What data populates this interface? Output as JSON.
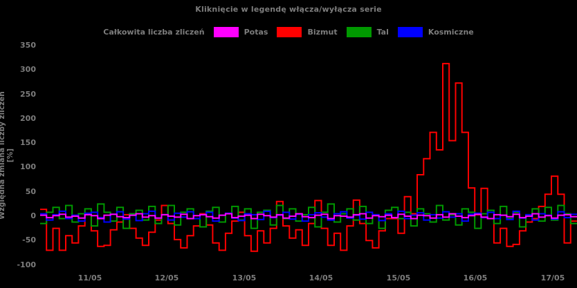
{
  "chart_data": {
    "type": "line",
    "style": "steps",
    "title": "Kliknięcie w legendę włącza/wyłącza serie",
    "ylabel": "Względna zmiana liczby zliczeń [%]",
    "xlabel": "",
    "ylim": [
      -100,
      350
    ],
    "grid": false,
    "background_color": "#000000",
    "text_color": "#7d7d7d",
    "legend_position": "top-center",
    "ytick_labels": [
      "350",
      "300",
      "250",
      "200",
      "150",
      "100",
      "50",
      "0",
      "-50",
      "-100"
    ],
    "yticks": [
      350,
      300,
      250,
      200,
      150,
      100,
      50,
      0,
      -50,
      -100
    ],
    "xtick_labels": [
      "11/05",
      "12/05",
      "13/05",
      "14/05",
      "15/05",
      "16/05",
      "17/05"
    ],
    "legend": [
      {
        "label": "Całkowita liczba zliczeń",
        "color": null,
        "visible": false
      },
      {
        "label": "Potas",
        "color": "#ff00ff",
        "visible": true
      },
      {
        "label": "Bizmut",
        "color": "#ff0000",
        "visible": true
      },
      {
        "label": "Tal",
        "color": "#009900",
        "visible": true
      },
      {
        "label": "Kosmiczne",
        "color": "#0000ff",
        "visible": true
      }
    ],
    "x_axis_note": "time bins of ~2h from 10/05 ~09:00 to 17/05 ~08:00",
    "series": [
      {
        "name": "Bizmut",
        "color": "#ff0000",
        "values": [
          14,
          -70,
          -25,
          -70,
          -40,
          -55,
          -20,
          5,
          -30,
          -62,
          -60,
          -28,
          -12,
          3,
          -25,
          -45,
          -60,
          -33,
          -8,
          22,
          -15,
          -48,
          -65,
          -40,
          -20,
          5,
          -18,
          -55,
          -70,
          -35,
          -10,
          8,
          -40,
          -72,
          -30,
          -55,
          -25,
          30,
          -20,
          -45,
          -28,
          -60,
          -15,
          32,
          -25,
          -60,
          -35,
          -70,
          -20,
          33,
          -15,
          -50,
          -65,
          -30,
          -5,
          -5,
          -35,
          40,
          5,
          85,
          118,
          172,
          136,
          313,
          155,
          273,
          172,
          58,
          3,
          57,
          -5,
          -55,
          -25,
          -62,
          -58,
          -30,
          -12,
          -5,
          20,
          45,
          82,
          45,
          -55,
          -10
        ]
      },
      {
        "name": "Tal",
        "color": "#009900",
        "values": [
          -15,
          8,
          18,
          -5,
          22,
          -12,
          5,
          15,
          -20,
          25,
          8,
          -10,
          18,
          -25,
          5,
          12,
          -8,
          20,
          -15,
          3,
          22,
          -18,
          8,
          15,
          -5,
          -22,
          10,
          18,
          -12,
          5,
          20,
          -8,
          15,
          -25,
          8,
          12,
          -18,
          22,
          -5,
          15,
          -10,
          3,
          18,
          -22,
          8,
          25,
          -12,
          5,
          15,
          -8,
          20,
          -15,
          3,
          -25,
          12,
          18,
          -5,
          8,
          -20,
          15,
          5,
          -12,
          22,
          -8,
          3,
          -18,
          15,
          8,
          -25,
          5,
          12,
          -15,
          20,
          -5,
          8,
          -22,
          3,
          15,
          -10,
          18,
          -8,
          22,
          5,
          -15
        ]
      },
      {
        "name": "Kosmiczne",
        "color": "#0000ff",
        "values": [
          5,
          -8,
          3,
          10,
          -5,
          2,
          -10,
          6,
          8,
          -3,
          -12,
          4,
          9,
          -6,
          2,
          -9,
          5,
          10,
          -4,
          3,
          -8,
          6,
          -2,
          9,
          -5,
          3,
          8,
          -10,
          2,
          6,
          -4,
          -9,
          5,
          3,
          -7,
          10,
          -3,
          2,
          8,
          -6,
          4,
          -10,
          3,
          7,
          -2,
          -8,
          5,
          9,
          -4,
          2,
          -6,
          8,
          3,
          -9,
          5,
          -3,
          10,
          -5,
          2,
          7,
          -8,
          3,
          -4,
          9,
          -2,
          5,
          -10,
          4,
          6,
          -3,
          8,
          -5,
          2,
          -7,
          10,
          -4,
          3,
          -8,
          5,
          2,
          -6,
          9,
          -3,
          4
        ]
      },
      {
        "name": "Potas",
        "color": "#ff00ff",
        "values": [
          2,
          -3,
          1,
          4,
          -2,
          0,
          -4,
          3,
          1,
          -5,
          2,
          4,
          -1,
          -3,
          2,
          5,
          -2,
          1,
          -4,
          3,
          0,
          -2,
          4,
          -5,
          1,
          3,
          -1,
          -4,
          2,
          5,
          -3,
          0,
          2,
          -5,
          4,
          1,
          -2,
          3,
          -4,
          0,
          5,
          -1,
          -3,
          2,
          4,
          -5,
          1,
          0,
          -2,
          3,
          5,
          -4,
          1,
          -1,
          2,
          -3,
          4,
          0,
          -5,
          2,
          1,
          -4,
          3,
          -2,
          5,
          0,
          -3,
          1,
          4,
          -2,
          -5,
          3,
          2,
          -1,
          4,
          -3,
          0,
          5,
          -2,
          1,
          -4,
          2,
          3,
          -1
        ]
      }
    ]
  }
}
